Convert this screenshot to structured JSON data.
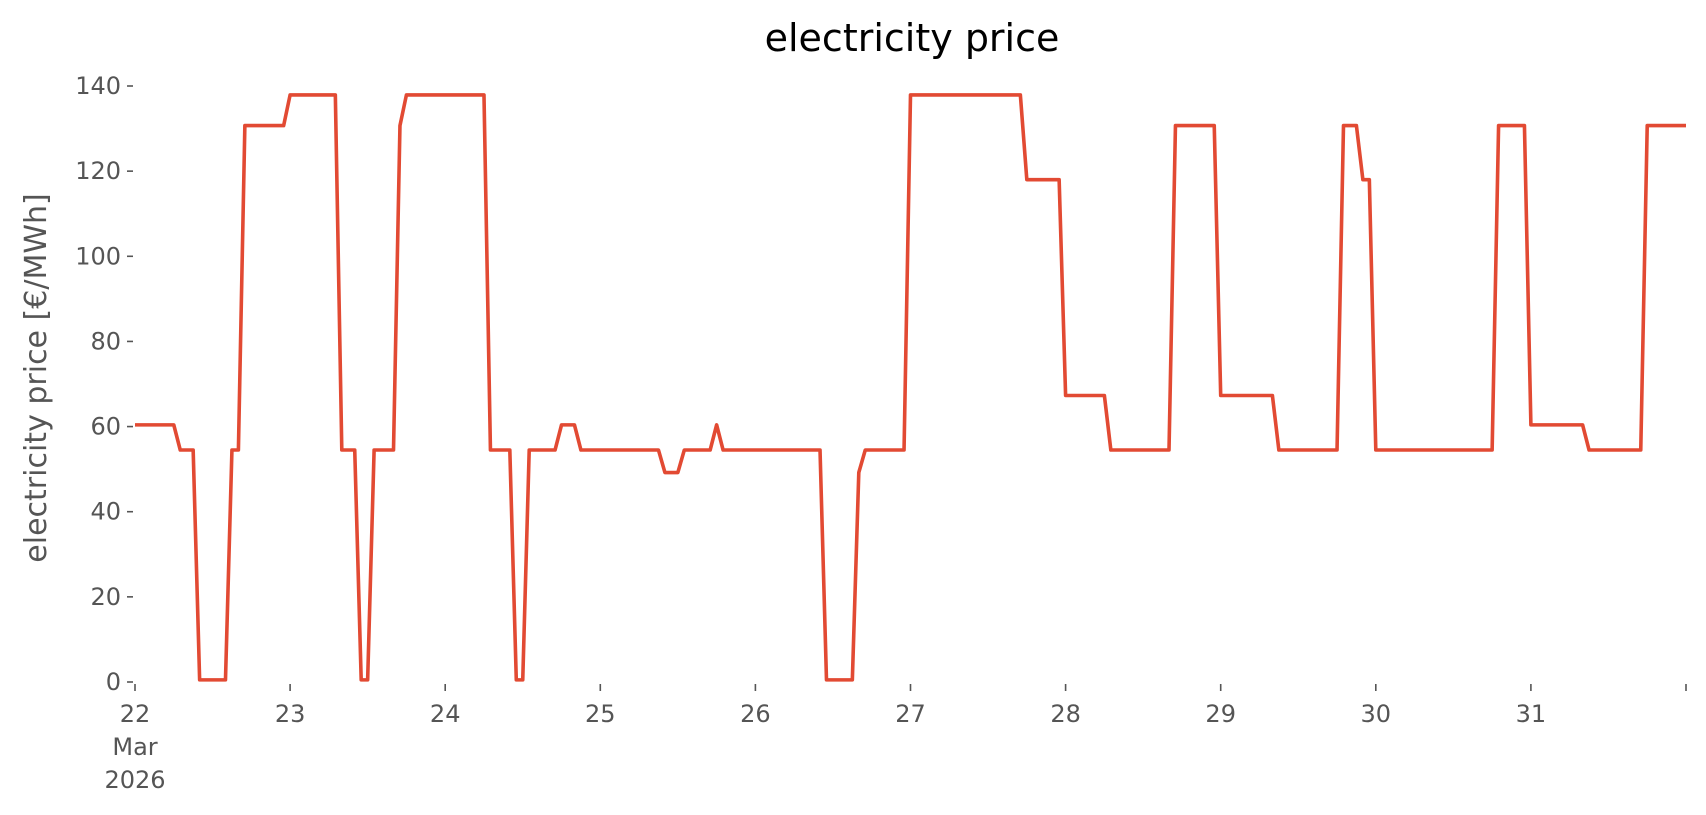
{
  "colors": {
    "background": "#ffffff",
    "series": "#e24a33",
    "text": "#555555",
    "title": "#000000"
  },
  "chart_data": {
    "type": "line",
    "title": "electricity price",
    "xlabel": "",
    "ylabel": "electricity price [€/MWh]",
    "grid": false,
    "legend": "none",
    "ylim": [
      0,
      140
    ],
    "xlim": [
      "2026-03-22 00:00",
      "2026-04-01 00:00"
    ],
    "y_ticks": [
      0,
      20,
      40,
      60,
      80,
      100,
      120,
      140
    ],
    "x_ticks": [
      {
        "at": "2026-03-22 00:00",
        "lines": [
          "22",
          "Mar",
          "2026"
        ]
      },
      {
        "at": "2026-03-23 00:00",
        "lines": [
          "23"
        ]
      },
      {
        "at": "2026-03-24 00:00",
        "lines": [
          "24"
        ]
      },
      {
        "at": "2026-03-25 00:00",
        "lines": [
          "25"
        ]
      },
      {
        "at": "2026-03-26 00:00",
        "lines": [
          "26"
        ]
      },
      {
        "at": "2026-03-27 00:00",
        "lines": [
          "27"
        ]
      },
      {
        "at": "2026-03-28 00:00",
        "lines": [
          "28"
        ]
      },
      {
        "at": "2026-03-29 00:00",
        "lines": [
          "29"
        ]
      },
      {
        "at": "2026-03-30 00:00",
        "lines": [
          "30"
        ]
      },
      {
        "at": "2026-03-31 00:00",
        "lines": [
          "31"
        ]
      },
      {
        "at": "2026-04-01 00:00",
        "lines": [
          ""
        ]
      }
    ],
    "series": [
      {
        "name": "",
        "color": "#e24a33",
        "points": [
          [
            "2026-03-22 00:00",
            60.4
          ],
          [
            "2026-03-22 06:00",
            60.4
          ],
          [
            "2026-03-22 07:00",
            54.5
          ],
          [
            "2026-03-22 09:00",
            54.5
          ],
          [
            "2026-03-22 10:00",
            0.5
          ],
          [
            "2026-03-22 14:00",
            0.5
          ],
          [
            "2026-03-22 15:00",
            54.5
          ],
          [
            "2026-03-22 16:00",
            54.5
          ],
          [
            "2026-03-22 17:00",
            130.7
          ],
          [
            "2026-03-22 23:00",
            130.7
          ],
          [
            "2026-03-23 00:00",
            137.9
          ],
          [
            "2026-03-23 07:00",
            137.9
          ],
          [
            "2026-03-23 08:00",
            54.5
          ],
          [
            "2026-03-23 10:00",
            54.5
          ],
          [
            "2026-03-23 11:00",
            0.5
          ],
          [
            "2026-03-23 12:00",
            0.5
          ],
          [
            "2026-03-23 13:00",
            54.5
          ],
          [
            "2026-03-23 16:00",
            54.5
          ],
          [
            "2026-03-23 17:00",
            130.7
          ],
          [
            "2026-03-23 18:00",
            137.9
          ],
          [
            "2026-03-24 06:00",
            137.9
          ],
          [
            "2026-03-24 07:00",
            54.5
          ],
          [
            "2026-03-24 10:00",
            54.5
          ],
          [
            "2026-03-24 11:00",
            0.5
          ],
          [
            "2026-03-24 12:00",
            0.5
          ],
          [
            "2026-03-24 13:00",
            54.5
          ],
          [
            "2026-03-24 17:00",
            54.5
          ],
          [
            "2026-03-24 18:00",
            60.4
          ],
          [
            "2026-03-24 20:00",
            60.4
          ],
          [
            "2026-03-24 21:00",
            54.5
          ],
          [
            "2026-03-25 09:00",
            54.5
          ],
          [
            "2026-03-25 10:00",
            49.2
          ],
          [
            "2026-03-25 12:00",
            49.2
          ],
          [
            "2026-03-25 13:00",
            54.5
          ],
          [
            "2026-03-25 17:00",
            54.5
          ],
          [
            "2026-03-25 18:00",
            60.4
          ],
          [
            "2026-03-25 19:00",
            54.5
          ],
          [
            "2026-03-26 10:00",
            54.5
          ],
          [
            "2026-03-26 11:00",
            0.5
          ],
          [
            "2026-03-26 15:00",
            0.5
          ],
          [
            "2026-03-26 16:00",
            49.2
          ],
          [
            "2026-03-26 17:00",
            54.5
          ],
          [
            "2026-03-26 23:00",
            54.5
          ],
          [
            "2026-03-27 00:00",
            137.9
          ],
          [
            "2026-03-27 17:00",
            137.9
          ],
          [
            "2026-03-27 18:00",
            118.0
          ],
          [
            "2026-03-27 23:00",
            118.0
          ],
          [
            "2026-03-28 00:00",
            67.3
          ],
          [
            "2026-03-28 06:00",
            67.3
          ],
          [
            "2026-03-28 07:00",
            54.5
          ],
          [
            "2026-03-28 16:00",
            54.5
          ],
          [
            "2026-03-28 17:00",
            130.7
          ],
          [
            "2026-03-28 23:00",
            130.7
          ],
          [
            "2026-03-29 00:00",
            67.3
          ],
          [
            "2026-03-29 08:00",
            67.3
          ],
          [
            "2026-03-29 09:00",
            54.5
          ],
          [
            "2026-03-29 18:00",
            54.5
          ],
          [
            "2026-03-29 19:00",
            130.7
          ],
          [
            "2026-03-29 21:00",
            130.7
          ],
          [
            "2026-03-29 22:00",
            118.0
          ],
          [
            "2026-03-29 23:00",
            118.0
          ],
          [
            "2026-03-30 00:00",
            54.5
          ],
          [
            "2026-03-30 18:00",
            54.5
          ],
          [
            "2026-03-30 19:00",
            130.7
          ],
          [
            "2026-03-30 23:00",
            130.7
          ],
          [
            "2026-03-31 00:00",
            60.4
          ],
          [
            "2026-03-31 08:00",
            60.4
          ],
          [
            "2026-03-31 09:00",
            54.5
          ],
          [
            "2026-03-31 17:00",
            54.5
          ],
          [
            "2026-03-31 18:00",
            130.7
          ],
          [
            "2026-04-01 00:00",
            130.7
          ]
        ]
      }
    ]
  }
}
